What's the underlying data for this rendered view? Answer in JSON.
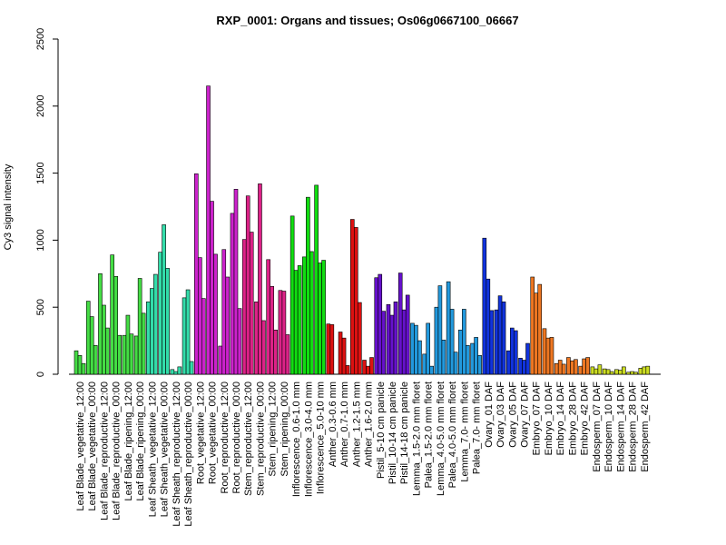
{
  "chart_data": {
    "type": "bar",
    "title": "RXP_0001: Organs and tissues; Os06g0667100_06667",
    "ylabel": "Cy3 signal intensity",
    "xlabel": "",
    "ylim": [
      0,
      2500
    ],
    "yticks": [
      0,
      500,
      1000,
      1500,
      2000,
      2500
    ],
    "grid": false,
    "legend": "none",
    "categories": [
      "Leaf Blade_vegetative_12:00",
      "Leaf Blade_vegetative_00:00",
      "Leaf Blade_reproductive_12:00",
      "Leaf Blade_reproductive_00:00",
      "Leaf Blade_ripening_12:00",
      "Leaf Blade_ripening_00:00",
      "Leaf Sheath_vegetative_12:00",
      "Leaf Sheath_vegetative_00:00",
      "Leaf Sheath_reproductive_12:00",
      "Leaf Sheath_reproductive_00:00",
      "Root_vegetative_12:00",
      "Root_vegetative_00:00",
      "Root_reproductive_12:00",
      "Root_reproductive_00:00",
      "Stem_reproductive_12:00",
      "Stem_reproductive_00:00",
      "Stem_ripening_12:00",
      "Stem_ripening_00:00",
      "Inflorescence_0.6-1.0 mm",
      "Inflorescence_3.0-4.0 mm",
      "Inflorescence_5.0-10 mm",
      "Anther_0.3-0.6 mm",
      "Anther_0.7-1.0 mm",
      "Anther_1.2-1.5 mm",
      "Anther_1.6-2.0 mm",
      "Pistil_5-10 cm panicle",
      "Pistil_10-14 cm panicle",
      "Pistil_14-18 cm panicle",
      "Lemma_1.5-2.0 mm floret",
      "Palea_1.5-2.0 mm floret",
      "Lemma_4.0-5.0 mm floret",
      "Palea_4.0-5.0 mm floret",
      "Lemma_7.0- mm floret",
      "Palea_7.0- mm floret",
      "Ovary_01 DAF",
      "Ovary_03 DAF",
      "Ovary_05 DAF",
      "Ovary_07 DAF",
      "Embryo_07 DAF",
      "Embryo_10 DAF",
      "Embryo_14 DAF",
      "Embryo_28 DAF",
      "Embryo_42 DAF",
      "Endosperm_07 DAF",
      "Endosperm_10 DAF",
      "Endosperm_14 DAF",
      "Endosperm_28 DAF",
      "Endosperm_42 DAF"
    ],
    "colors": [
      "#44dd44",
      "#44dd44",
      "#44dd44",
      "#44dd44",
      "#44dd44",
      "#44dd44",
      "#33ddaa",
      "#33ddaa",
      "#33ddaa",
      "#33ddaa",
      "#cc22cc",
      "#cc22cc",
      "#cc22cc",
      "#cc22cc",
      "#dd2288",
      "#dd2288",
      "#dd2288",
      "#dd2288",
      "#11dd11",
      "#11dd11",
      "#11dd11",
      "#dd1111",
      "#dd1111",
      "#dd1111",
      "#dd1111",
      "#6611cc",
      "#6611cc",
      "#6611cc",
      "#2299dd",
      "#2299dd",
      "#2299dd",
      "#2299dd",
      "#2299dd",
      "#2299dd",
      "#1133dd",
      "#1133dd",
      "#1133dd",
      "#1133dd",
      "#ee7722",
      "#ee7722",
      "#ee7722",
      "#ee7722",
      "#ee7722",
      "#ccdd22",
      "#ccdd22",
      "#ccdd22",
      "#ccdd22",
      "#ccdd22"
    ],
    "values": [
      [
        175,
        140,
        80
      ],
      [
        545,
        430,
        215
      ],
      [
        750,
        515,
        345
      ],
      [
        890,
        730,
        290
      ],
      [
        290,
        440,
        300
      ],
      [
        285,
        715,
        455
      ],
      [
        540,
        640,
        745
      ],
      [
        910,
        1115,
        790
      ],
      [
        35,
        20,
        55
      ],
      [
        570,
        630,
        95
      ],
      [
        1495,
        870,
        565
      ],
      [
        2150,
        1290,
        895
      ],
      [
        210,
        930,
        725
      ],
      [
        1200,
        1380,
        490
      ],
      [
        1005,
        1330,
        1060
      ],
      [
        540,
        1420,
        400
      ],
      [
        855,
        655,
        330
      ],
      [
        625,
        620,
        295
      ],
      [
        1180,
        775,
        810
      ],
      [
        875,
        1320,
        915
      ],
      [
        1410,
        830,
        850
      ],
      [
        375,
        370,
        0
      ],
      [
        315,
        270,
        65
      ],
      [
        1155,
        1095,
        535
      ],
      [
        105,
        60,
        125
      ],
      [
        720,
        745,
        470
      ],
      [
        520,
        440,
        540
      ],
      [
        755,
        480,
        590
      ],
      [
        380,
        365,
        250
      ],
      [
        150,
        380,
        60
      ],
      [
        500,
        660,
        255
      ],
      [
        690,
        485,
        165
      ],
      [
        330,
        485,
        215
      ],
      [
        230,
        275,
        140
      ],
      [
        1015,
        710,
        475
      ],
      [
        480,
        585,
        540
      ],
      [
        175,
        345,
        325
      ],
      [
        120,
        105,
        230
      ],
      [
        725,
        605,
        670
      ],
      [
        340,
        270,
        275
      ],
      [
        80,
        105,
        75
      ],
      [
        125,
        100,
        110
      ],
      [
        60,
        115,
        125
      ],
      [
        55,
        40,
        70
      ],
      [
        40,
        35,
        20
      ],
      [
        35,
        30,
        55
      ],
      [
        15,
        20,
        15
      ],
      [
        45,
        55,
        60
      ]
    ]
  }
}
